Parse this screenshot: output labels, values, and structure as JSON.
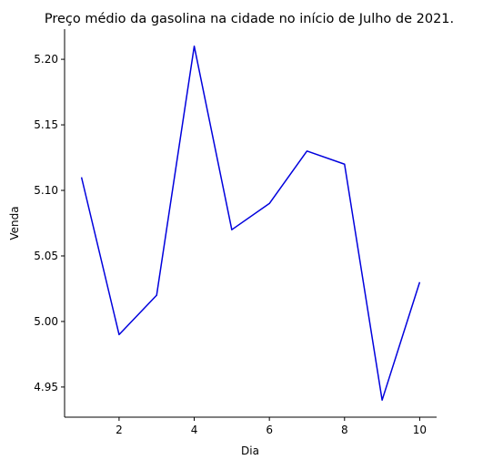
{
  "chart_data": {
    "type": "line",
    "title": "Preço médio da gasolina na cidade no início de Julho de 2021.",
    "xlabel": "Dia",
    "ylabel": "Venda",
    "x": [
      1,
      2,
      3,
      4,
      5,
      6,
      7,
      8,
      9,
      10
    ],
    "series": [
      {
        "values": [
          5.11,
          4.99,
          5.02,
          5.21,
          5.07,
          5.09,
          5.13,
          5.12,
          4.94,
          5.03
        ],
        "color": "#0000dd"
      }
    ],
    "xlim": [
      0.55,
      10.45
    ],
    "ylim": [
      4.927,
      5.223
    ],
    "xticks": [
      2,
      4,
      6,
      8,
      10
    ],
    "xtick_labels": [
      "2",
      "4",
      "6",
      "8",
      "10"
    ],
    "yticks": [
      4.95,
      5.0,
      5.05,
      5.1,
      5.15,
      5.2
    ],
    "ytick_labels": [
      "4.95",
      "5.00",
      "5.05",
      "5.10",
      "5.15",
      "5.20"
    ],
    "grid": false,
    "spines": [
      "left",
      "bottom"
    ],
    "axis_color": "#000000"
  }
}
